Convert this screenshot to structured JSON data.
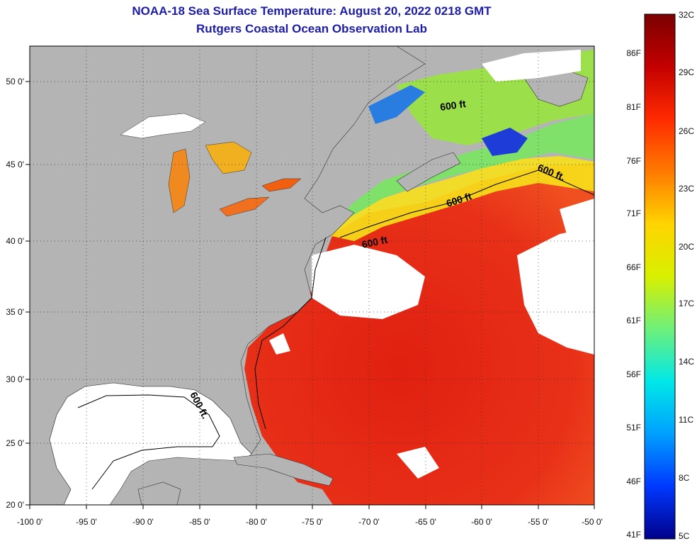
{
  "title": {
    "line1": "NOAA-18 Sea Surface Temperature:  August 20, 2022 0218 GMT",
    "line2": "Rutgers Coastal Ocean Observation Lab"
  },
  "map": {
    "lon_ticks": [
      "-100 0'",
      "-95 0'",
      "-90 0'",
      "-85 0'",
      "-80 0'",
      "-75 0'",
      "-70 0'",
      "-65 0'",
      "-60 0'",
      "-55 0'",
      "-50 0'"
    ],
    "lat_ticks": [
      "50 0'",
      "45 0'",
      "40 0'",
      "35 0'",
      "30 0'",
      "25 0'",
      "20 0'"
    ],
    "contour_labels": [
      "600 ft.",
      "600 ft",
      "600 ft",
      "600 ft",
      "600 ft."
    ],
    "colors": {
      "land": "#b4b4b4",
      "clouds": "#ffffff",
      "warm_water": "#e52410",
      "coastal_cool": "#7fe06a"
    }
  },
  "colorbar": {
    "celsius": [
      "32C",
      "29C",
      "26C",
      "23C",
      "20C",
      "17C",
      "14C",
      "11C",
      "8C",
      "5C"
    ],
    "fahrenheit": [
      "86F",
      "81F",
      "76F",
      "71F",
      "66F",
      "61F",
      "56F",
      "51F",
      "46F",
      "41F"
    ],
    "gradient_colors": [
      "#7a0000",
      "#c40000",
      "#ff2a00",
      "#ff7a00",
      "#ffd400",
      "#d8f000",
      "#6ef07a",
      "#00e8e8",
      "#00a0ff",
      "#0038ff",
      "#00008a"
    ]
  }
}
